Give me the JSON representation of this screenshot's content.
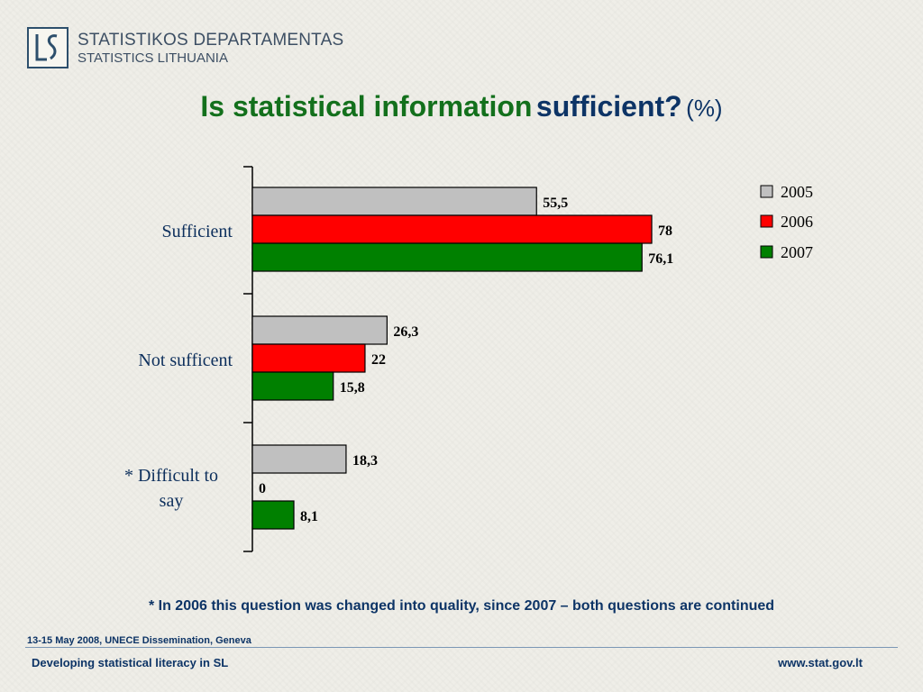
{
  "header": {
    "org_line1": "STATISTIKOS DEPARTAMENTAS",
    "org_line2": "STATISTICS LITHUANIA",
    "logo_text": "LS"
  },
  "title": {
    "main": "Is statistical information",
    "question": "sufficient?",
    "unit": "(%)"
  },
  "chart_data": {
    "type": "bar",
    "orientation": "horizontal",
    "categories": [
      "Sufficient",
      "Not sufficent",
      "* Difficult to say"
    ],
    "category_lines": [
      [
        "Sufficient"
      ],
      [
        "Not sufficent"
      ],
      [
        "* Difficult to",
        "say"
      ]
    ],
    "series": [
      {
        "name": "2005",
        "color": "#c0c0c0",
        "values": [
          55.5,
          26.3,
          18.3
        ],
        "labels": [
          "55,5",
          "26,3",
          "18,3"
        ]
      },
      {
        "name": "2006",
        "color": "#ff0000",
        "values": [
          78,
          22,
          0
        ],
        "labels": [
          "78",
          "22",
          "0"
        ]
      },
      {
        "name": "2007",
        "color": "#008000",
        "values": [
          76.1,
          15.8,
          8.1
        ],
        "labels": [
          "76,1",
          "15,8",
          "8,1"
        ]
      }
    ],
    "xlim": [
      0,
      100
    ],
    "grid": false,
    "legend_position": "top-right"
  },
  "footnote": "* In 2006 this question was changed into quality, since 2007 – both questions are continued",
  "footer": {
    "event": "13-15 May 2008, UNECE Dissemination, Geneva",
    "left": "Developing statistical literacy in SL",
    "right": "www.stat.gov.lt"
  }
}
